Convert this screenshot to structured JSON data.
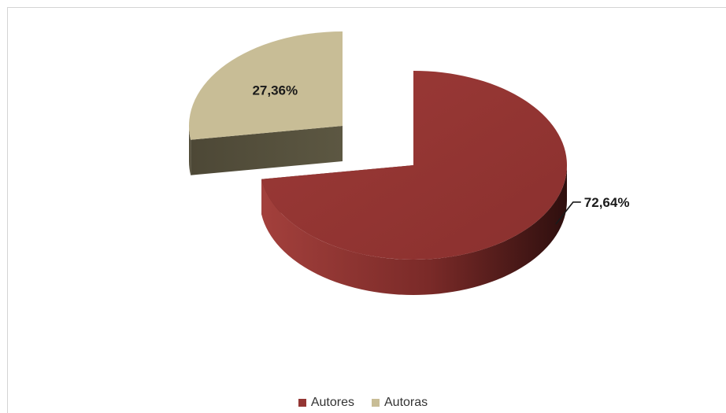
{
  "chart_data": {
    "type": "pie",
    "style": "3d-exploded",
    "categories": [
      "Autores",
      "Autoras"
    ],
    "values": [
      72.64,
      27.36
    ],
    "labels": [
      "72,64%",
      "27,36%"
    ],
    "colors": {
      "Autores": {
        "top": "#943634",
        "side": "#5a1c1b"
      },
      "Autoras": {
        "top": "#c8bd96",
        "side": "#57523e"
      }
    },
    "legend": {
      "position": "bottom",
      "entries": [
        "Autores",
        "Autoras"
      ]
    }
  }
}
